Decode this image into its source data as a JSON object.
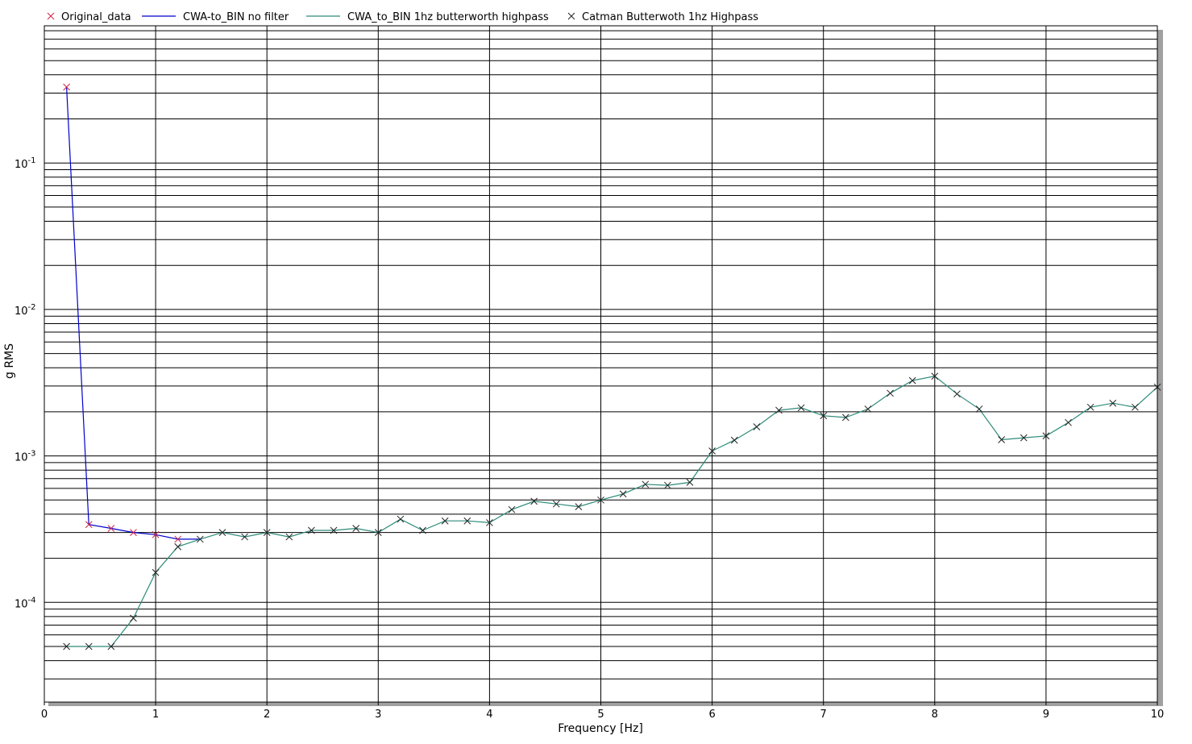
{
  "chart_data": {
    "type": "line",
    "xlabel": "Frequency [Hz]",
    "ylabel": "g RMS",
    "xlim": [
      0,
      10
    ],
    "ylim": [
      2e-05,
      1
    ],
    "yscale": "log",
    "grid": true,
    "legend_position": "top",
    "x_ticks": [
      "0",
      "1",
      "2",
      "3",
      "4",
      "5",
      "6",
      "7",
      "8",
      "9",
      "10"
    ],
    "y_ticks": [
      {
        "value": 0.1,
        "base": "10",
        "exp": "-1"
      },
      {
        "value": 0.01,
        "base": "10",
        "exp": "-2"
      },
      {
        "value": 0.001,
        "base": "10",
        "exp": "-3"
      },
      {
        "value": 0.0001,
        "base": "10",
        "exp": "-4"
      }
    ],
    "series": [
      {
        "name": "Original_data",
        "style": "marker",
        "marker": "x",
        "color": "#cc2244",
        "x": [
          0.2,
          0.4,
          0.6,
          0.8,
          1.0,
          1.2
        ],
        "y": [
          0.33,
          0.00034,
          0.00032,
          0.0003,
          0.00029,
          0.00027
        ]
      },
      {
        "name": "CWA-to_BIN no filter",
        "style": "line",
        "color": "#0000cc",
        "x": [
          0.2,
          0.4,
          0.6,
          0.8,
          1.0,
          1.2,
          1.4
        ],
        "y": [
          0.33,
          0.00034,
          0.00032,
          0.0003,
          0.00029,
          0.00027,
          0.00027
        ]
      },
      {
        "name": "CWA_to_BIN 1hz butterworth highpass",
        "style": "line",
        "color": "#2e8b7a",
        "x": [
          0.2,
          0.4,
          0.6,
          0.8,
          1.0,
          1.2,
          1.4,
          1.6,
          1.8,
          2.0,
          2.2,
          2.4,
          2.6,
          2.8,
          3.0,
          3.2,
          3.4,
          3.6,
          3.8,
          4.0,
          4.2,
          4.4,
          4.6,
          4.8,
          5.0,
          5.2,
          5.4,
          5.6,
          5.8,
          6.0,
          6.2,
          6.4,
          6.6,
          6.8,
          7.0,
          7.2,
          7.4,
          7.6,
          7.8,
          8.0,
          8.2,
          8.4,
          8.6,
          8.8,
          9.0,
          9.2,
          9.4,
          9.6,
          9.8,
          10.0
        ],
        "y": [
          5e-05,
          5e-05,
          5e-05,
          7.8e-05,
          0.00016,
          0.00024,
          0.00027,
          0.0003,
          0.00028,
          0.0003,
          0.00028,
          0.00031,
          0.00031,
          0.00032,
          0.0003,
          0.00037,
          0.00031,
          0.00036,
          0.00036,
          0.00035,
          0.00043,
          0.00049,
          0.00047,
          0.00045,
          0.0005,
          0.00055,
          0.00064,
          0.00063,
          0.00066,
          0.00108,
          0.00128,
          0.00158,
          0.00205,
          0.00213,
          0.00188,
          0.00183,
          0.00209,
          0.00268,
          0.00327,
          0.0035,
          0.00265,
          0.00209,
          0.00129,
          0.00133,
          0.00137,
          0.00169,
          0.00215,
          0.00229,
          0.00215,
          0.00295
        ]
      },
      {
        "name": "Catman Butterwoth 1hz Highpass",
        "style": "marker",
        "marker": "x",
        "color": "#222222",
        "x": [
          0.2,
          0.4,
          0.6,
          0.8,
          1.0,
          1.2,
          1.4,
          1.6,
          1.8,
          2.0,
          2.2,
          2.4,
          2.6,
          2.8,
          3.0,
          3.2,
          3.4,
          3.6,
          3.8,
          4.0,
          4.2,
          4.4,
          4.6,
          4.8,
          5.0,
          5.2,
          5.4,
          5.6,
          5.8,
          6.0,
          6.2,
          6.4,
          6.6,
          6.8,
          7.0,
          7.2,
          7.4,
          7.6,
          7.8,
          8.0,
          8.2,
          8.4,
          8.6,
          8.8,
          9.0,
          9.2,
          9.4,
          9.6,
          9.8,
          10.0
        ],
        "y": [
          5e-05,
          5e-05,
          5e-05,
          7.8e-05,
          0.00016,
          0.00024,
          0.00027,
          0.0003,
          0.00028,
          0.0003,
          0.00028,
          0.00031,
          0.00031,
          0.00032,
          0.0003,
          0.00037,
          0.00031,
          0.00036,
          0.00036,
          0.00035,
          0.00043,
          0.00049,
          0.00047,
          0.00045,
          0.0005,
          0.00055,
          0.00064,
          0.00063,
          0.00066,
          0.00108,
          0.00128,
          0.00158,
          0.00205,
          0.00213,
          0.00188,
          0.00183,
          0.00209,
          0.00268,
          0.00327,
          0.0035,
          0.00265,
          0.00209,
          0.00129,
          0.00133,
          0.00137,
          0.00169,
          0.00215,
          0.00229,
          0.00215,
          0.00295
        ]
      }
    ]
  }
}
